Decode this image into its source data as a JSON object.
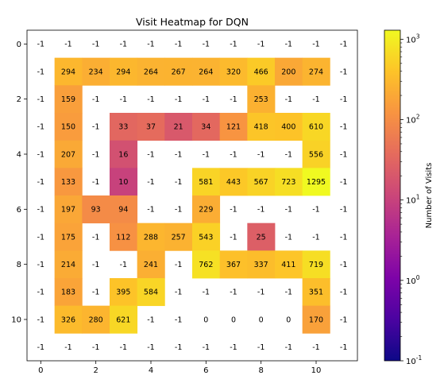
{
  "chart_data": {
    "type": "heatmap",
    "title": "Visit Heatmap for DQN",
    "xlabel": "",
    "ylabel": "",
    "x_ticks": [
      0,
      2,
      4,
      6,
      8,
      10
    ],
    "y_ticks": [
      0,
      2,
      4,
      6,
      8,
      10
    ],
    "colorbar": {
      "label": "Number of Visits",
      "scale": "log",
      "range": [
        0.1,
        1295
      ],
      "tick_labels": [
        "10^3",
        "10^2",
        "10^1",
        "10^0",
        "10^-1"
      ],
      "colormap": "plasma"
    },
    "values": [
      [
        -1,
        -1,
        -1,
        -1,
        -1,
        -1,
        -1,
        -1,
        -1,
        -1,
        -1,
        -1
      ],
      [
        -1,
        294,
        234,
        294,
        264,
        267,
        264,
        320,
        466,
        200,
        274,
        -1
      ],
      [
        -1,
        159,
        -1,
        -1,
        -1,
        -1,
        -1,
        -1,
        253,
        -1,
        -1,
        -1
      ],
      [
        -1,
        150,
        -1,
        33,
        37,
        21,
        34,
        121,
        418,
        400,
        610,
        -1
      ],
      [
        -1,
        207,
        -1,
        16,
        -1,
        -1,
        -1,
        -1,
        -1,
        -1,
        556,
        -1
      ],
      [
        -1,
        133,
        -1,
        10,
        -1,
        -1,
        581,
        443,
        567,
        723,
        1295,
        -1
      ],
      [
        -1,
        197,
        93,
        94,
        -1,
        -1,
        229,
        -1,
        -1,
        -1,
        -1,
        -1
      ],
      [
        -1,
        175,
        -1,
        112,
        288,
        257,
        543,
        -1,
        25,
        -1,
        -1,
        -1
      ],
      [
        -1,
        214,
        -1,
        -1,
        241,
        -1,
        762,
        367,
        337,
        411,
        719,
        -1
      ],
      [
        -1,
        183,
        -1,
        395,
        584,
        -1,
        -1,
        -1,
        -1,
        -1,
        351,
        -1
      ],
      [
        -1,
        326,
        280,
        621,
        -1,
        -1,
        0,
        0,
        0,
        0,
        170,
        -1
      ],
      [
        -1,
        -1,
        -1,
        -1,
        -1,
        -1,
        -1,
        -1,
        -1,
        -1,
        -1,
        -1
      ]
    ]
  }
}
